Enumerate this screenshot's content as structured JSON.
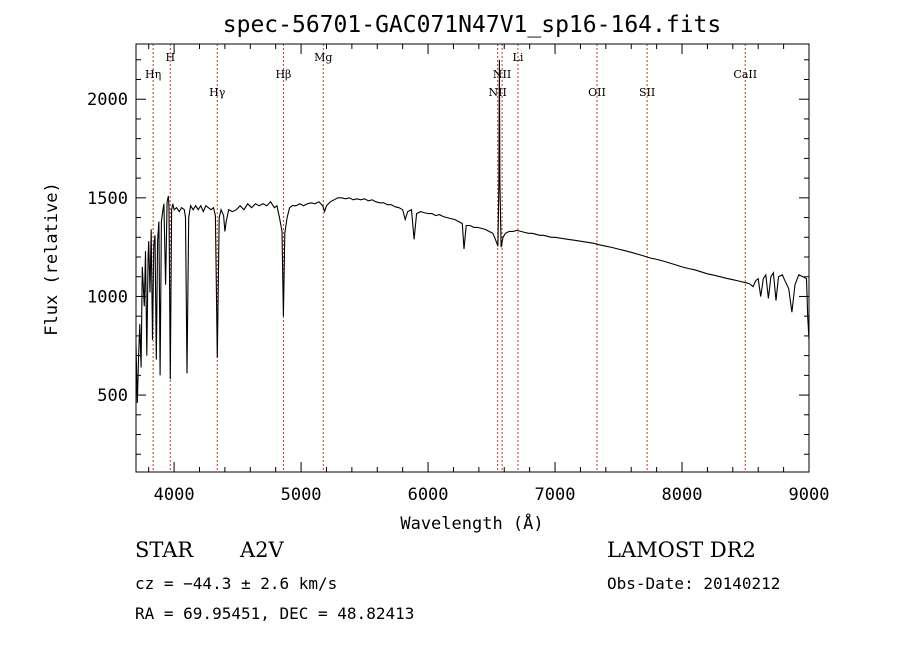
{
  "chart_data": {
    "type": "line",
    "title": "spec-56701-GAC071N47V1_sp16-164.fits",
    "xlabel": "Wavelength (Å)",
    "ylabel": "Flux (relative)",
    "xlim": [
      3700,
      9000
    ],
    "ylim": [
      110,
      2280
    ],
    "xticks": [
      4000,
      5000,
      6000,
      7000,
      8000,
      9000
    ],
    "yticks": [
      500,
      1000,
      1500,
      2000
    ],
    "grid": false,
    "legend": "none",
    "line_color": "#000000",
    "marker_color": "#c0392b",
    "series": [
      {
        "points": [
          [
            3700,
            760
          ],
          [
            3710,
            460
          ],
          [
            3720,
            680
          ],
          [
            3730,
            860
          ],
          [
            3740,
            640
          ],
          [
            3750,
            1150
          ],
          [
            3765,
            950
          ],
          [
            3775,
            1230
          ],
          [
            3785,
            700
          ],
          [
            3795,
            1200
          ],
          [
            3800,
            1280
          ],
          [
            3810,
            1020
          ],
          [
            3820,
            1340
          ],
          [
            3830,
            780
          ],
          [
            3840,
            1260
          ],
          [
            3850,
            1310
          ],
          [
            3860,
            680
          ],
          [
            3870,
            1280
          ],
          [
            3880,
            1380
          ],
          [
            3890,
            600
          ],
          [
            3900,
            1380
          ],
          [
            3910,
            1430
          ],
          [
            3920,
            1470
          ],
          [
            3933,
            1060
          ],
          [
            3945,
            1480
          ],
          [
            3955,
            1510
          ],
          [
            3960,
            1450
          ],
          [
            3970,
            580
          ],
          [
            3980,
            1440
          ],
          [
            3990,
            1470
          ],
          [
            4000,
            1440
          ],
          [
            4020,
            1450
          ],
          [
            4040,
            1430
          ],
          [
            4060,
            1450
          ],
          [
            4080,
            1440
          ],
          [
            4090,
            1400
          ],
          [
            4102,
            610
          ],
          [
            4115,
            1400
          ],
          [
            4130,
            1460
          ],
          [
            4150,
            1440
          ],
          [
            4170,
            1460
          ],
          [
            4190,
            1440
          ],
          [
            4210,
            1460
          ],
          [
            4230,
            1430
          ],
          [
            4250,
            1460
          ],
          [
            4270,
            1450
          ],
          [
            4290,
            1440
          ],
          [
            4310,
            1450
          ],
          [
            4325,
            1410
          ],
          [
            4340,
            690
          ],
          [
            4355,
            1400
          ],
          [
            4370,
            1440
          ],
          [
            4390,
            1410
          ],
          [
            4400,
            1330
          ],
          [
            4410,
            1380
          ],
          [
            4430,
            1440
          ],
          [
            4460,
            1430
          ],
          [
            4490,
            1440
          ],
          [
            4520,
            1460
          ],
          [
            4550,
            1440
          ],
          [
            4580,
            1470
          ],
          [
            4610,
            1450
          ],
          [
            4640,
            1470
          ],
          [
            4670,
            1460
          ],
          [
            4700,
            1470
          ],
          [
            4730,
            1460
          ],
          [
            4760,
            1480
          ],
          [
            4790,
            1450
          ],
          [
            4810,
            1460
          ],
          [
            4830,
            1400
          ],
          [
            4850,
            1330
          ],
          [
            4861,
            900
          ],
          [
            4872,
            1320
          ],
          [
            4890,
            1400
          ],
          [
            4910,
            1450
          ],
          [
            4930,
            1460
          ],
          [
            4960,
            1460
          ],
          [
            4990,
            1470
          ],
          [
            5020,
            1460
          ],
          [
            5050,
            1470
          ],
          [
            5080,
            1475
          ],
          [
            5110,
            1470
          ],
          [
            5140,
            1480
          ],
          [
            5170,
            1460
          ],
          [
            5185,
            1430
          ],
          [
            5200,
            1460
          ],
          [
            5230,
            1480
          ],
          [
            5260,
            1490
          ],
          [
            5290,
            1500
          ],
          [
            5320,
            1500
          ],
          [
            5350,
            1495
          ],
          [
            5380,
            1500
          ],
          [
            5410,
            1490
          ],
          [
            5440,
            1495
          ],
          [
            5470,
            1490
          ],
          [
            5500,
            1495
          ],
          [
            5530,
            1485
          ],
          [
            5560,
            1490
          ],
          [
            5590,
            1480
          ],
          [
            5620,
            1475
          ],
          [
            5650,
            1475
          ],
          [
            5680,
            1465
          ],
          [
            5710,
            1465
          ],
          [
            5740,
            1455
          ],
          [
            5770,
            1450
          ],
          [
            5800,
            1440
          ],
          [
            5820,
            1390
          ],
          [
            5840,
            1430
          ],
          [
            5870,
            1440
          ],
          [
            5890,
            1290
          ],
          [
            5910,
            1420
          ],
          [
            5940,
            1430
          ],
          [
            5970,
            1425
          ],
          [
            6000,
            1420
          ],
          [
            6030,
            1420
          ],
          [
            6060,
            1410
          ],
          [
            6090,
            1415
          ],
          [
            6120,
            1405
          ],
          [
            6150,
            1400
          ],
          [
            6180,
            1395
          ],
          [
            6210,
            1390
          ],
          [
            6240,
            1380
          ],
          [
            6270,
            1370
          ],
          [
            6283,
            1240
          ],
          [
            6300,
            1360
          ],
          [
            6330,
            1360
          ],
          [
            6360,
            1350
          ],
          [
            6390,
            1350
          ],
          [
            6420,
            1345
          ],
          [
            6450,
            1340
          ],
          [
            6480,
            1330
          ],
          [
            6510,
            1320
          ],
          [
            6530,
            1290
          ],
          [
            6550,
            1255
          ],
          [
            6558,
            1580
          ],
          [
            6562,
            2200
          ],
          [
            6566,
            1580
          ],
          [
            6575,
            1250
          ],
          [
            6590,
            1300
          ],
          [
            6610,
            1320
          ],
          [
            6640,
            1330
          ],
          [
            6670,
            1330
          ],
          [
            6700,
            1335
          ],
          [
            6730,
            1330
          ],
          [
            6760,
            1325
          ],
          [
            6790,
            1320
          ],
          [
            6820,
            1320
          ],
          [
            6850,
            1315
          ],
          [
            6880,
            1310
          ],
          [
            6910,
            1310
          ],
          [
            6940,
            1305
          ],
          [
            6970,
            1300
          ],
          [
            7000,
            1300
          ],
          [
            7050,
            1295
          ],
          [
            7100,
            1290
          ],
          [
            7150,
            1285
          ],
          [
            7200,
            1280
          ],
          [
            7250,
            1275
          ],
          [
            7300,
            1270
          ],
          [
            7350,
            1262
          ],
          [
            7400,
            1255
          ],
          [
            7450,
            1248
          ],
          [
            7500,
            1240
          ],
          [
            7550,
            1232
          ],
          [
            7600,
            1224
          ],
          [
            7650,
            1215
          ],
          [
            7700,
            1205
          ],
          [
            7750,
            1195
          ],
          [
            7800,
            1188
          ],
          [
            7850,
            1180
          ],
          [
            7900,
            1170
          ],
          [
            7950,
            1160
          ],
          [
            8000,
            1150
          ],
          [
            8050,
            1142
          ],
          [
            8100,
            1135
          ],
          [
            8150,
            1125
          ],
          [
            8200,
            1115
          ],
          [
            8250,
            1108
          ],
          [
            8300,
            1100
          ],
          [
            8350,
            1092
          ],
          [
            8400,
            1085
          ],
          [
            8450,
            1078
          ],
          [
            8500,
            1070
          ],
          [
            8530,
            1065
          ],
          [
            8560,
            1050
          ],
          [
            8580,
            1080
          ],
          [
            8600,
            1090
          ],
          [
            8620,
            1000
          ],
          [
            8640,
            1090
          ],
          [
            8660,
            1110
          ],
          [
            8680,
            990
          ],
          [
            8700,
            1100
          ],
          [
            8720,
            1120
          ],
          [
            8740,
            980
          ],
          [
            8760,
            1100
          ],
          [
            8790,
            1110
          ],
          [
            8810,
            1080
          ],
          [
            8840,
            1040
          ],
          [
            8865,
            920
          ],
          [
            8890,
            1060
          ],
          [
            8920,
            1110
          ],
          [
            8950,
            1100
          ],
          [
            8980,
            1090
          ],
          [
            8990,
            900
          ],
          [
            9000,
            780
          ]
        ]
      }
    ],
    "line_markers": [
      {
        "label": "Hη",
        "x": 3835,
        "level": 2
      },
      {
        "label": "H",
        "x": 3970,
        "level": 1
      },
      {
        "label": "Hγ",
        "x": 4340,
        "level": 3
      },
      {
        "label": "Hβ",
        "x": 4861,
        "level": 2
      },
      {
        "label": "Mg",
        "x": 5175,
        "level": 1
      },
      {
        "label": "NII",
        "x": 6548,
        "level": 3
      },
      {
        "label": "NII",
        "x": 6583,
        "level": 2
      },
      {
        "label": "Li",
        "x": 6708,
        "level": 1
      },
      {
        "label": "OII",
        "x": 7330,
        "level": 3
      },
      {
        "label": "SII",
        "x": 7725,
        "level": 3
      },
      {
        "label": "CaII",
        "x": 8498,
        "level": 2
      }
    ]
  },
  "info": {
    "object_class": "STAR",
    "subclass": "A2V",
    "cz": "cz = −44.3 ± 2.6 km/s",
    "radec": "RA =  69.95451, DEC =  48.82413",
    "survey": "LAMOST DR2",
    "obs_date": "Obs-Date: 20140212"
  }
}
